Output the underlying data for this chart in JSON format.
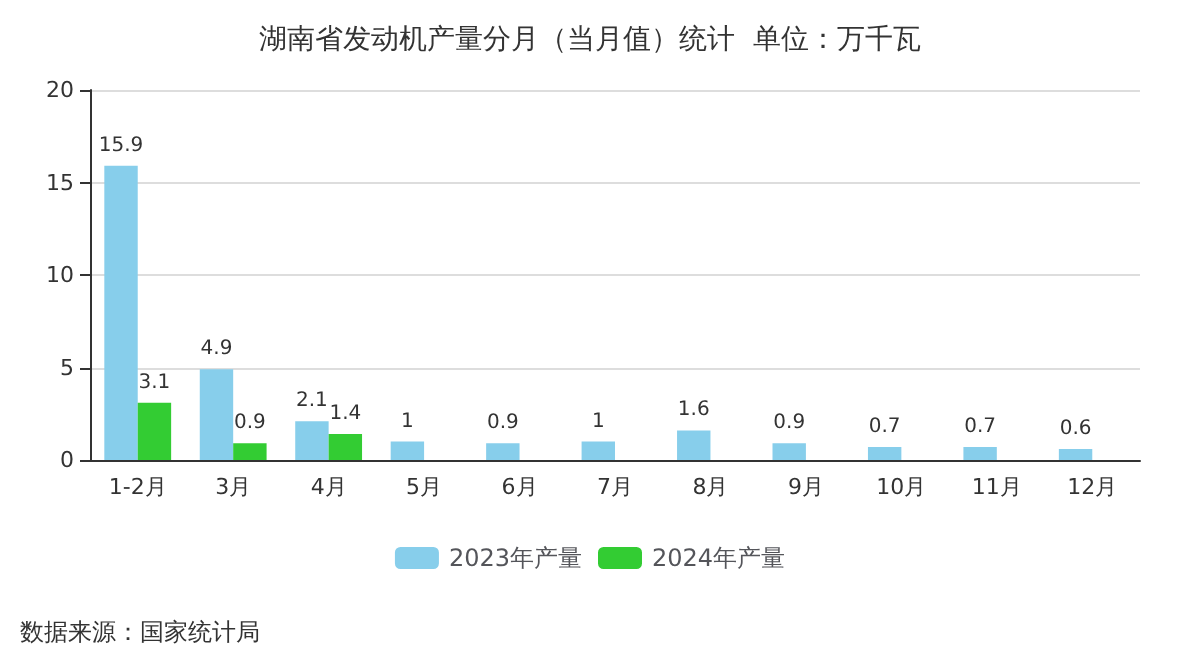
{
  "chart_data": {
    "type": "bar",
    "title": "湖南省发动机产量分月（当月值）统计  单位：万千瓦",
    "categories": [
      "1-2月",
      "3月",
      "4月",
      "5月",
      "6月",
      "7月",
      "8月",
      "9月",
      "10月",
      "11月",
      "12月"
    ],
    "series": [
      {
        "name": "2023年产量",
        "color": "#87ceeb",
        "values": [
          15.9,
          4.9,
          2.1,
          1,
          0.9,
          1,
          1.6,
          0.9,
          0.7,
          0.7,
          0.6
        ]
      },
      {
        "name": "2024年产量",
        "color": "#33cc33",
        "values": [
          3.1,
          0.9,
          1.4,
          null,
          null,
          null,
          null,
          null,
          null,
          null,
          null
        ]
      }
    ],
    "ylim": [
      0,
      20
    ],
    "yticks": [
      0,
      5,
      10,
      15,
      20
    ],
    "grid": "y",
    "legend": "bottom",
    "data_labels": true,
    "annotations": [
      "数据来源：国家统计局"
    ]
  }
}
